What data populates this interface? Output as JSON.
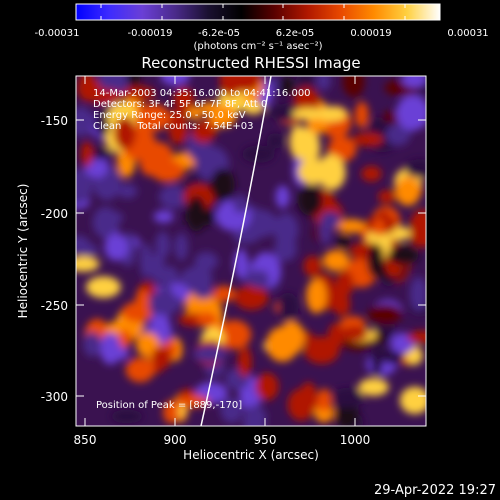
{
  "colorbar": {
    "colormap": [
      "#0000ff",
      "#3d2bff",
      "#6a3fd6",
      "#4a2a8a",
      "#1a1030",
      "#000000",
      "#5a0000",
      "#b01800",
      "#e84800",
      "#ff8a00",
      "#ffd040",
      "#ffffff"
    ],
    "ticks": [
      "-0.00031",
      "-0.00019",
      "-6.2e-05",
      "6.2e-05",
      "0.00019",
      "0.00031"
    ],
    "units_label": "(photons cm⁻² s⁻¹ asec⁻²)"
  },
  "image": {
    "title": "Reconstructed RHESSI Image",
    "info_lines": [
      "14-Mar-2003 04:35:16.000 to 04:41:16.000",
      "Detectors: 3F 4F 5F 6F 7F 8F, Att 0",
      "Energy Range: 25.0 - 50.0 keV",
      "Clean     Total counts: 7.54E+03"
    ],
    "peak_label": "Position of Peak = [889,-170]",
    "limb_color": "#ffffff"
  },
  "axes": {
    "xlabel": "Heliocentric X (arcsec)",
    "ylabel": "Heliocentric Y (arcsec)",
    "x_ticks": [
      "850",
      "900",
      "950",
      "1000"
    ],
    "y_ticks": [
      "-150",
      "-200",
      "-250",
      "-300"
    ]
  },
  "footer": {
    "timestamp": "29-Apr-2022 19:27"
  }
}
